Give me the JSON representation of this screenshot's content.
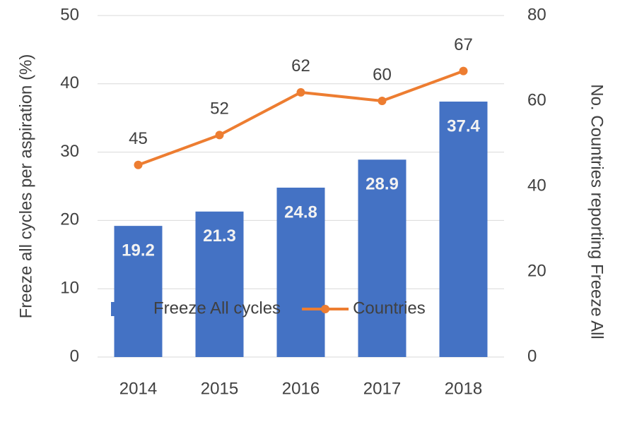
{
  "chart_data": {
    "type": "bar",
    "categories": [
      "2014",
      "2015",
      "2016",
      "2017",
      "2018"
    ],
    "series": [
      {
        "name": "Freeze All cycles",
        "type": "bar",
        "color": "#4472c4",
        "values": [
          19.2,
          21.3,
          24.8,
          28.9,
          37.4
        ]
      },
      {
        "name": "Countries",
        "type": "line",
        "axis": "y2",
        "color": "#ed7d31",
        "values": [
          45,
          52,
          62,
          60,
          67
        ]
      }
    ],
    "ylabel": "Freeze all cycles  per aspiration (%)",
    "y2label": "No. Countries reporting Freeze All",
    "ylim": [
      0,
      50
    ],
    "yticks": [
      0,
      10,
      20,
      30,
      40,
      50
    ],
    "y2lim": [
      0,
      80
    ],
    "y2ticks": [
      0,
      20,
      40,
      60,
      80
    ],
    "grid": true,
    "legend": "bottom",
    "data_labels": true
  }
}
